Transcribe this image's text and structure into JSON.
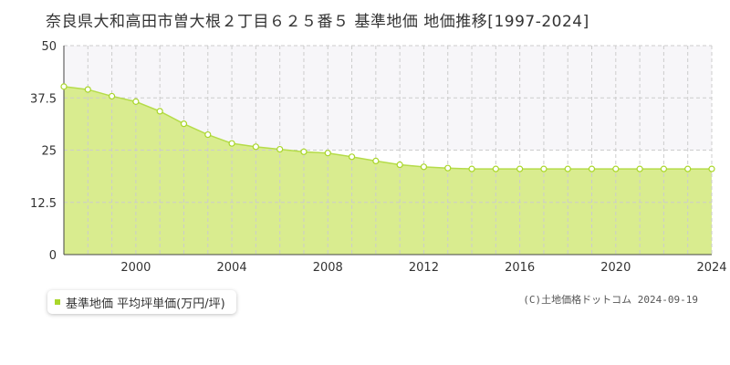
{
  "title": "奈良県大和高田市曽大根２丁目６２５番５ 基準地価 地価推移[1997-2024]",
  "legend": {
    "label": "基準地価 平均坪単価(万円/坪)"
  },
  "copyright": "(C)土地価格ドットコム 2024-09-19",
  "colors": {
    "fill": "#d9ec8f",
    "line": "#b5dc4a",
    "point_stroke": "#a9d62a",
    "band": "#f7f6f9",
    "grid": "#cccccc"
  },
  "chart_data": {
    "type": "area",
    "title": "",
    "xlabel": "",
    "ylabel": "",
    "x": [
      1997,
      1998,
      1999,
      2000,
      2001,
      2002,
      2003,
      2004,
      2005,
      2006,
      2007,
      2008,
      2009,
      2010,
      2011,
      2012,
      2013,
      2014,
      2015,
      2016,
      2017,
      2018,
      2019,
      2020,
      2021,
      2022,
      2023,
      2024
    ],
    "series": [
      {
        "name": "基準地価 平均坪単価(万円/坪)",
        "values": [
          40.2,
          39.5,
          37.9,
          36.6,
          34.3,
          31.3,
          28.7,
          26.6,
          25.8,
          25.2,
          24.6,
          24.3,
          23.4,
          22.4,
          21.5,
          21.0,
          20.7,
          20.5,
          20.5,
          20.5,
          20.5,
          20.5,
          20.5,
          20.5,
          20.5,
          20.5,
          20.5,
          20.5
        ]
      }
    ],
    "yticks": [
      "0",
      "12.5",
      "25",
      "37.5",
      "50"
    ],
    "xtick_labels": [
      "2000",
      "2004",
      "2008",
      "2012",
      "2016",
      "2020",
      "2024"
    ],
    "xlim": [
      1997,
      2024
    ],
    "ylim": [
      0,
      50
    ],
    "grid": true,
    "legend_position": "bottom-left"
  }
}
